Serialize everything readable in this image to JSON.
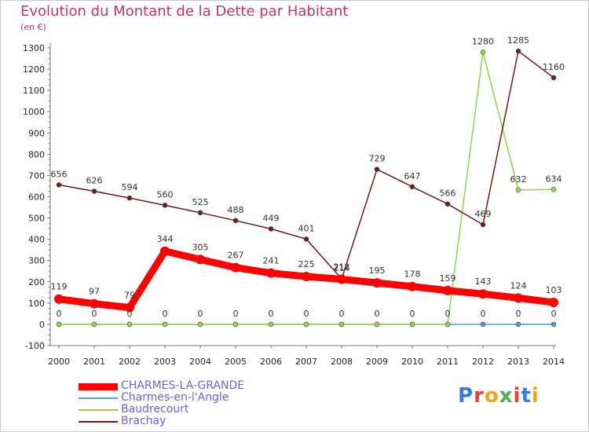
{
  "title": "Evolution du Montant de la Dette par Habitant",
  "subtitle": "(en €)",
  "logo_text": "Proxiti",
  "colors": {
    "title": "#c0356a",
    "axis": "#777777",
    "grid_tick": "#cc3366",
    "charmes_la_grande": "#ff0000",
    "charmes_en_l_angle": "#5b9bd5",
    "baudrecourt": "#92d050",
    "brachay": "#6b1c1c"
  },
  "chart_data": {
    "type": "line",
    "title": "Evolution du Montant de la Dette par Habitant",
    "ylabel": "(en €)",
    "xlabel": "",
    "x": [
      "2000",
      "2001",
      "2002",
      "2003",
      "2004",
      "2005",
      "2006",
      "2007",
      "2008",
      "2009",
      "2010",
      "2011",
      "2012",
      "2013",
      "2014"
    ],
    "ylim": [
      -100,
      1300
    ],
    "yticks": [
      -100,
      0,
      100,
      200,
      300,
      400,
      500,
      600,
      700,
      800,
      900,
      1000,
      1100,
      1200,
      1300
    ],
    "legend_position": "bottom-left",
    "grid": false,
    "series": [
      {
        "name": "CHARMES-LA-GRANDE",
        "color": "#ff0000",
        "values": [
          119,
          97,
          79,
          344,
          305,
          267,
          241,
          225,
          212,
          195,
          178,
          159,
          143,
          124,
          103
        ]
      },
      {
        "name": "Charmes-en-l'Angle",
        "color": "#5b9bd5",
        "values": [
          0,
          0,
          0,
          0,
          0,
          0,
          0,
          0,
          0,
          0,
          0,
          0,
          0,
          0,
          0
        ]
      },
      {
        "name": "Baudrecourt",
        "color": "#92d050",
        "values": [
          0,
          0,
          0,
          0,
          0,
          0,
          0,
          0,
          0,
          0,
          0,
          0,
          1280,
          632,
          634
        ]
      },
      {
        "name": "Brachay",
        "color": "#6b1c1c",
        "values": [
          656,
          626,
          594,
          560,
          525,
          488,
          449,
          401,
          214,
          729,
          647,
          566,
          469,
          1285,
          1160
        ]
      }
    ]
  }
}
